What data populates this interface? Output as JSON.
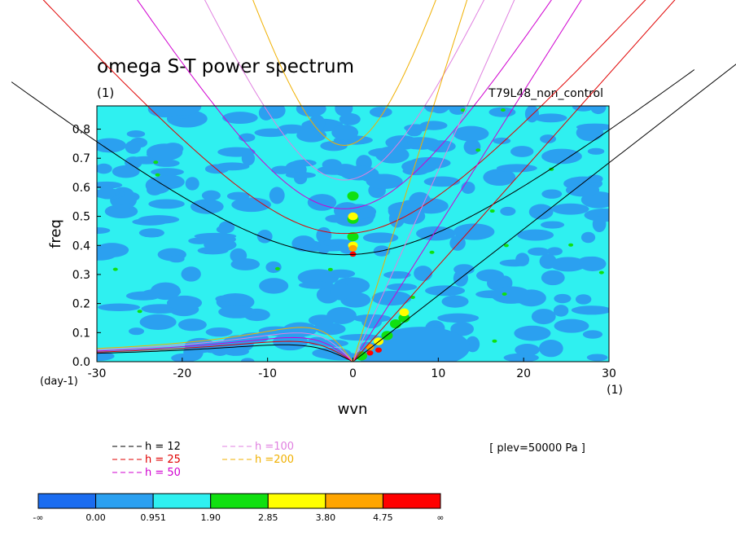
{
  "chart_data": {
    "type": "heatmap",
    "title": "omega S-T power spectrum",
    "subtitle_units": "(1)",
    "run_label": "T79L48_non_control",
    "xlabel": "wvn",
    "ylabel": "freq",
    "x_units": "(1)",
    "y_units": "(day-1)",
    "xlim": [
      -30,
      30
    ],
    "ylim": [
      0,
      0.88
    ],
    "x_ticks": [
      -30,
      -20,
      -10,
      0,
      10,
      20,
      30
    ],
    "y_ticks": [
      0.0,
      0.1,
      0.2,
      0.3,
      0.4,
      0.5,
      0.6,
      0.7,
      0.8
    ],
    "x_tick_labels": [
      "-30",
      "-20",
      "-10",
      "0",
      "10",
      "20",
      "30"
    ],
    "y_tick_labels": [
      "0.0",
      "0.1",
      "0.2",
      "0.3",
      "0.4",
      "0.5",
      "0.6",
      "0.7",
      "0.8"
    ],
    "annotation": "[ plev=50000 Pa ]",
    "colorbar": {
      "labels": [
        "-∞",
        "0.00",
        "0.951",
        "1.90",
        "2.85",
        "3.80",
        "4.75",
        "∞"
      ],
      "colors": [
        "#1a6cf0",
        "#2ba0f0",
        "#2ff0f0",
        "#10e010",
        "#ffff00",
        "#ffa500",
        "#ff0000"
      ]
    },
    "background_level_color": "#2ff0f0",
    "field_notes": "Mostly cyan/light-blue background; elevated power near wvn 0 at freq ~0.37-0.40 and along the eastward branch near wvn 2-6, freq 0-0.18.",
    "hot_spots": [
      {
        "x": 0,
        "y": 0.37,
        "level": 6
      },
      {
        "x": 0,
        "y": 0.39,
        "level": 5
      },
      {
        "x": 0,
        "y": 0.4,
        "level": 4
      },
      {
        "x": 0,
        "y": 0.43,
        "level": 3
      },
      {
        "x": 0,
        "y": 0.49,
        "level": 3
      },
      {
        "x": 0,
        "y": 0.57,
        "level": 3
      },
      {
        "x": 0,
        "y": 0.5,
        "level": 4
      },
      {
        "x": 2,
        "y": 0.03,
        "level": 6
      },
      {
        "x": 2,
        "y": 0.05,
        "level": 5
      },
      {
        "x": 3,
        "y": 0.07,
        "level": 4
      },
      {
        "x": 4,
        "y": 0.09,
        "level": 3
      },
      {
        "x": 5,
        "y": 0.13,
        "level": 3
      },
      {
        "x": 6,
        "y": 0.17,
        "level": 4
      },
      {
        "x": 6,
        "y": 0.15,
        "level": 3
      },
      {
        "x": 1,
        "y": 0.02,
        "level": 3
      },
      {
        "x": 3,
        "y": 0.04,
        "level": 6
      }
    ],
    "series": [
      {
        "name": "h = 12",
        "color": "#000000",
        "values_note": "dispersion curves for equivalent depth 12 m"
      },
      {
        "name": "h = 25",
        "color": "#e00000",
        "values_note": "dispersion curves for equivalent depth 25 m"
      },
      {
        "name": "h = 50",
        "color": "#d000d0",
        "values_note": "dispersion curves for equivalent depth 50 m"
      },
      {
        "name": "h =100",
        "color": "#e080e0",
        "values_note": "dispersion curves for equivalent depth 100 m"
      },
      {
        "name": "h =200",
        "color": "#f0b000",
        "values_note": "dispersion curves for equivalent depth 200 m"
      }
    ],
    "dispersion_params": {
      "h": [
        12,
        25,
        50,
        100,
        200
      ],
      "ig_min_freq": [
        0.368,
        0.441,
        0.526,
        0.625,
        0.744
      ],
      "kelvin_slope": [
        0.0228,
        0.033,
        0.0465,
        0.0658,
        0.0931
      ],
      "rossby_peak": [
        0.058,
        0.07,
        0.083,
        0.099,
        0.118
      ]
    },
    "legend_position": "below plot"
  },
  "legend": {
    "items": [
      {
        "label": "h = 12",
        "color": "#000000"
      },
      {
        "label": "h = 25",
        "color": "#e00000"
      },
      {
        "label": "h = 50",
        "color": "#d000d0"
      },
      {
        "label": "h =100",
        "color": "#e080e0"
      },
      {
        "label": "h =200",
        "color": "#f0b000"
      }
    ]
  }
}
